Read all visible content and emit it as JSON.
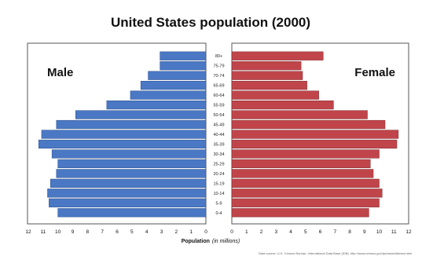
{
  "chart_data": {
    "type": "bar",
    "title": "United States population (2000)",
    "categories": [
      "0-4",
      "5-9",
      "10-14",
      "15-19",
      "20-24",
      "25-29",
      "30-34",
      "35-39",
      "40-44",
      "45-49",
      "50-54",
      "55-59",
      "60-64",
      "65-69",
      "70-74",
      "75-79",
      "80+"
    ],
    "category_labels": [
      "0-4",
      "5-9",
      "10-14",
      "15-19",
      "20-24",
      "25-29",
      "30-34",
      "35-39",
      "40-44",
      "45-49",
      "50-54",
      "55-59",
      "60-64",
      "65-69",
      "70-74",
      "75-79",
      "80+"
    ],
    "series": [
      {
        "name": "Male",
        "color": "#4a78c4",
        "values": [
          10.0,
          10.6,
          10.7,
          10.5,
          10.1,
          10.0,
          10.4,
          11.3,
          11.1,
          10.1,
          8.8,
          6.7,
          5.1,
          4.4,
          3.9,
          3.1,
          3.1
        ]
      },
      {
        "name": "Female",
        "color": "#c0454a",
        "values": [
          9.3,
          10.0,
          10.2,
          10.0,
          9.6,
          9.4,
          10.0,
          11.2,
          11.3,
          10.4,
          9.2,
          6.9,
          5.9,
          5.1,
          4.8,
          4.7,
          6.2
        ]
      }
    ],
    "xlabel": "Population",
    "xlabel_suffix": "(in millions)",
    "x_ticks_left": [
      "12",
      "11",
      "10",
      "9",
      "8",
      "7",
      "6",
      "5",
      "4",
      "3",
      "2",
      "1",
      "0"
    ],
    "x_ticks_right": [
      "0",
      "1",
      "2",
      "3",
      "4",
      "5",
      "6",
      "7",
      "8",
      "9",
      "10",
      "11",
      "12"
    ],
    "xlim": [
      0,
      12
    ],
    "grid": false,
    "legend": "inside-top",
    "source": "Data source: U.S. Census Bureau, International Data Base (IDB), http://www.census.gov/ipc/www/idbnew.html"
  }
}
